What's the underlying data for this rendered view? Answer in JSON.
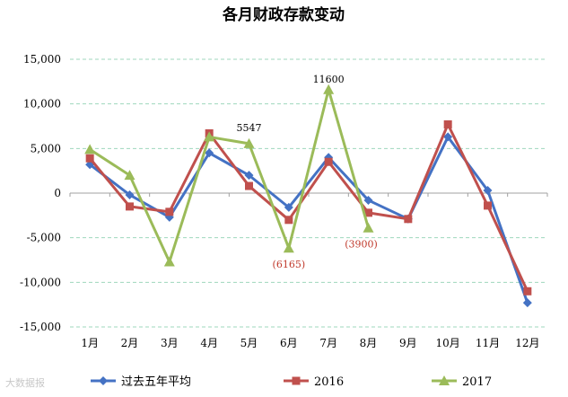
{
  "chart_data": {
    "type": "line",
    "title": "各月财政存款变动",
    "categories": [
      "1月",
      "2月",
      "3月",
      "4月",
      "5月",
      "6月",
      "7月",
      "8月",
      "9月",
      "10月",
      "11月",
      "12月"
    ],
    "ylim": [
      -15000,
      15000
    ],
    "yticks": [
      15000,
      10000,
      5000,
      0,
      -5000,
      -10000,
      -15000
    ],
    "ytick_labels": [
      "15,000",
      "10,000",
      "5,000",
      "0",
      "-5,000",
      "-10,000",
      "-15,000"
    ],
    "grid": true,
    "legend_position": "bottom",
    "series": [
      {
        "name": "过去五年平均",
        "color": "#4472c4",
        "marker": "diamond",
        "values": [
          3200,
          -200,
          -2700,
          4500,
          2000,
          -1600,
          4000,
          -800,
          -2900,
          6300,
          300,
          -12300
        ]
      },
      {
        "name": "2016",
        "color": "#c0504d",
        "marker": "square",
        "values": [
          3900,
          -1500,
          -2100,
          6700,
          800,
          -3000,
          3500,
          -2200,
          -2900,
          7700,
          -1400,
          -11000
        ]
      },
      {
        "name": "2017",
        "color": "#9bbb59",
        "marker": "triangle",
        "values": [
          4900,
          2000,
          -7700,
          6300,
          5547,
          -6165,
          11600,
          -3900,
          null,
          null,
          null,
          null
        ]
      }
    ],
    "annotations": [
      {
        "text": "5547",
        "category": "5月",
        "value": 5547,
        "style": "normal"
      },
      {
        "text": "11600",
        "category": "7月",
        "value": 11600,
        "style": "normal"
      },
      {
        "text": "(6165)",
        "category": "6月",
        "value": -6165,
        "style": "negative"
      },
      {
        "text": "(3900)",
        "category": "8月",
        "value": -3900,
        "style": "negative"
      }
    ]
  },
  "watermark": "大数据报"
}
